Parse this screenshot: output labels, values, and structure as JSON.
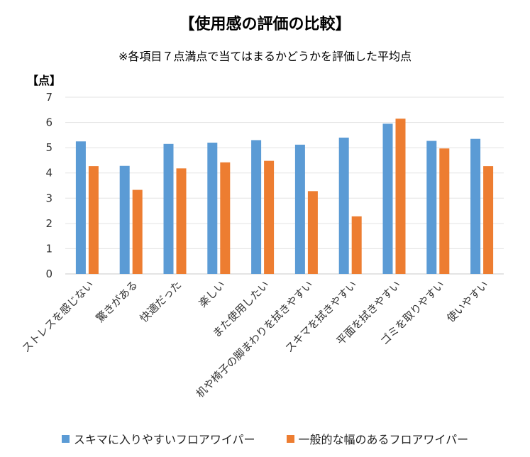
{
  "chart_data": {
    "type": "bar",
    "title": "【使用感の評価の比較】",
    "subtitle": "※各項目７点満点で当てはまるかどうかを評価した平均点",
    "ylabel": "【点】",
    "xlabel": "",
    "ylim": [
      0,
      7
    ],
    "yticks": [
      "0",
      "1",
      "2",
      "3",
      "4",
      "5",
      "6",
      "7"
    ],
    "grid": true,
    "legend_position": "bottom",
    "categories": [
      "ストレスを感じない",
      "驚きがある",
      "快適だった",
      "楽しい",
      "また使用したい",
      "机や椅子の脚まわりを拭きやすい",
      "スキマを拭きやすい",
      "平面を拭きやすい",
      "ゴミを取りやすい",
      "使いやすい"
    ],
    "series": [
      {
        "name": "スキマに入りやすいフロアワイパー",
        "color": "#5b9bd5",
        "values": [
          5.25,
          4.28,
          5.15,
          5.2,
          5.3,
          5.12,
          5.4,
          5.95,
          5.27,
          5.35
        ]
      },
      {
        "name": "一般的な幅のあるフロアワイパー",
        "color": "#ed7d31",
        "values": [
          4.27,
          3.33,
          4.18,
          4.42,
          4.48,
          3.28,
          2.28,
          6.15,
          4.97,
          4.27
        ]
      }
    ]
  }
}
